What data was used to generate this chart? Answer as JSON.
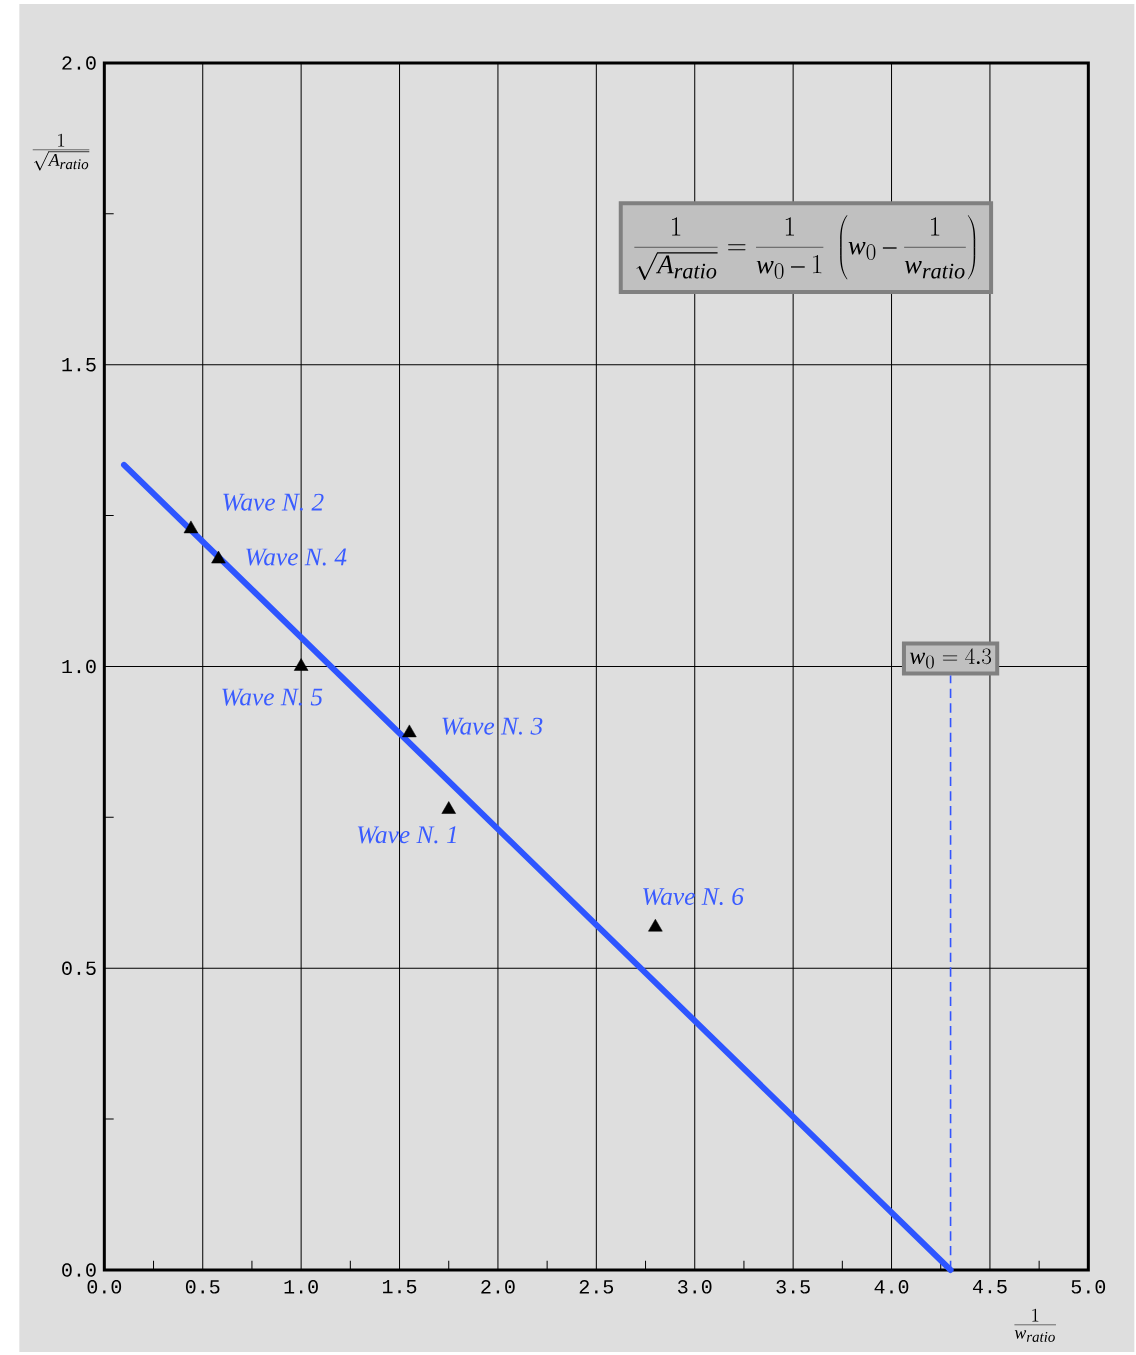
{
  "chart_data": {
    "type": "scatter",
    "xlabel": "\\frac{1}{w_{ratio}}",
    "ylabel": "\\frac{1}{\\sqrt{A_{ratio}}}",
    "xlim": [
      0,
      5
    ],
    "ylim": [
      0,
      2
    ],
    "xticks": [
      {
        "value": 0,
        "label": "0.0"
      },
      {
        "value": 0.5,
        "label": "0.5"
      },
      {
        "value": 1,
        "label": "1.0"
      },
      {
        "value": 1.5,
        "label": "1.5"
      },
      {
        "value": 2,
        "label": "2.0"
      },
      {
        "value": 2.5,
        "label": "2.5"
      },
      {
        "value": 3,
        "label": "3.0"
      },
      {
        "value": 3.5,
        "label": "3.5"
      },
      {
        "value": 4,
        "label": "4.0"
      },
      {
        "value": 4.5,
        "label": "4.5"
      },
      {
        "value": 5,
        "label": "5.0"
      }
    ],
    "yticks": [
      {
        "value": 0,
        "label": "0.0"
      },
      {
        "value": 0.5,
        "label": "0.5"
      },
      {
        "value": 1,
        "label": "1.0"
      },
      {
        "value": 1.5,
        "label": "1.5"
      },
      {
        "value": 2,
        "label": "2.0"
      }
    ],
    "grid": true,
    "series": [
      {
        "type": "line",
        "color": "#2e55ff",
        "x": [
          0.1,
          4.3
        ],
        "values": [
          1.334,
          0
        ]
      },
      {
        "color": "#000000",
        "marker": "triangle",
        "x": [
          0.44,
          0.58,
          1.0,
          1.55,
          1.75,
          2.8
        ],
        "values": [
          1.228,
          1.178,
          1.0,
          0.89,
          0.763,
          0.568
        ]
      }
    ],
    "ref_lines": [
      {
        "axis": "x",
        "value": 4.3,
        "label": "w_0 = 4.3",
        "color": "#3355ff",
        "line_style": "dashed"
      }
    ],
    "annotations": [
      "\\frac{1}{\\sqrt{A_{ratio}}} = \\frac{1}{w_0 - 1}\\ \\left(w_0 - \\frac{1}{w_{ratio}}\\right)",
      {
        "text": "Wave N. 2",
        "x": 0.44,
        "y": 1.228
      },
      {
        "text": "Wave N. 4",
        "x": 0.58,
        "y": 1.178
      },
      {
        "text": "Wave N. 5",
        "x": 1.0,
        "y": 1.0
      },
      {
        "text": "Wave N. 3",
        "x": 1.55,
        "y": 0.89
      },
      {
        "text": "Wave N. 1",
        "x": 1.75,
        "y": 0.763
      },
      {
        "text": "Wave N. 6",
        "x": 2.8,
        "y": 0.568
      }
    ]
  }
}
